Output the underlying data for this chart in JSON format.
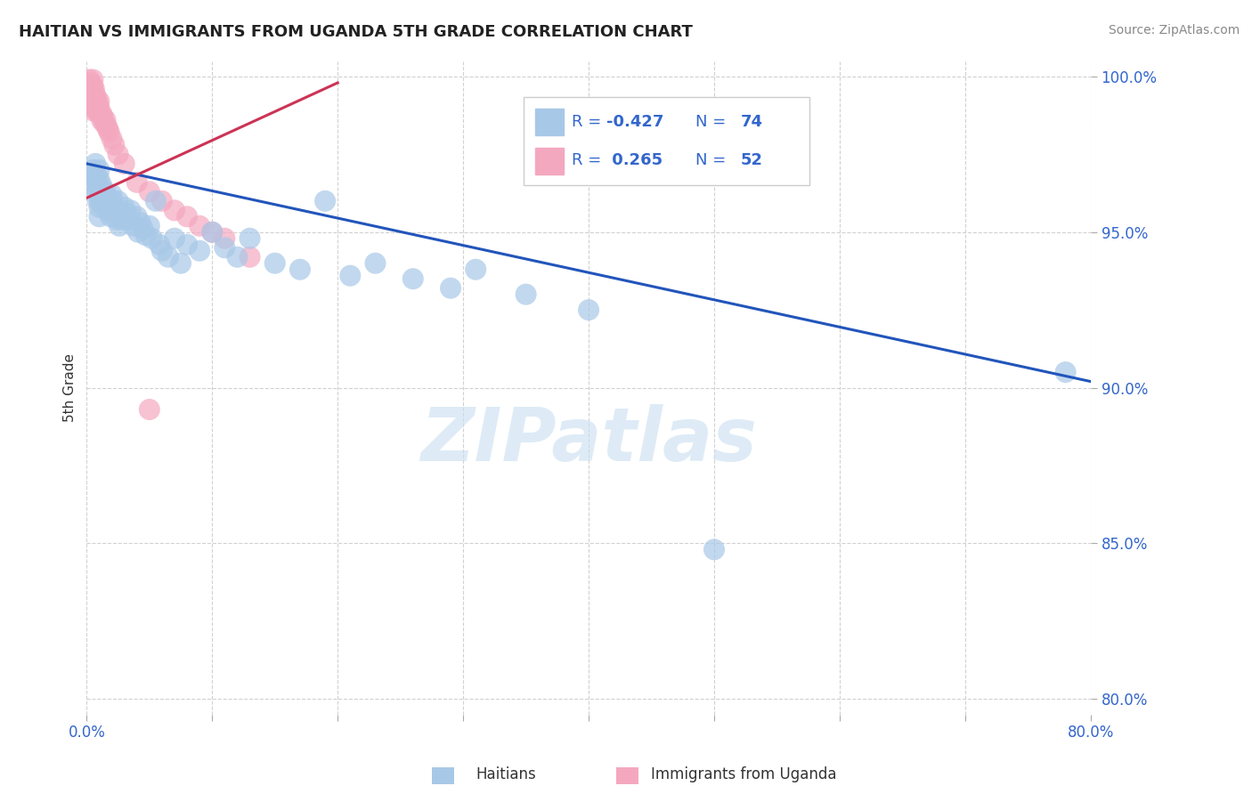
{
  "title": "HAITIAN VS IMMIGRANTS FROM UGANDA 5TH GRADE CORRELATION CHART",
  "source": "Source: ZipAtlas.com",
  "ylabel": "5th Grade",
  "xlim": [
    0.0,
    0.8
  ],
  "ylim": [
    0.795,
    1.005
  ],
  "xtick_positions": [
    0.0,
    0.1,
    0.2,
    0.3,
    0.4,
    0.5,
    0.6,
    0.7,
    0.8
  ],
  "xticklabels": [
    "0.0%",
    "",
    "",
    "",
    "",
    "",
    "",
    "",
    "80.0%"
  ],
  "ytick_positions": [
    0.8,
    0.85,
    0.9,
    0.95,
    1.0
  ],
  "yticklabels": [
    "80.0%",
    "85.0%",
    "90.0%",
    "95.0%",
    "100.0%"
  ],
  "blue_R": -0.427,
  "blue_N": 74,
  "pink_R": 0.265,
  "pink_N": 52,
  "blue_color": "#a8c8e8",
  "pink_color": "#f4a8c0",
  "blue_line_color": "#2255bb",
  "pink_line_color": "#cc3355",
  "text_color": "#3366cc",
  "blue_line_x": [
    0.0,
    0.8
  ],
  "blue_line_y": [
    0.972,
    0.902
  ],
  "pink_line_x": [
    0.0,
    0.2
  ],
  "pink_line_y": [
    0.961,
    0.998
  ],
  "blue_scatter_x": [
    0.005,
    0.005,
    0.005,
    0.007,
    0.007,
    0.008,
    0.008,
    0.009,
    0.009,
    0.01,
    0.01,
    0.01,
    0.01,
    0.01,
    0.01,
    0.012,
    0.012,
    0.012,
    0.013,
    0.013,
    0.014,
    0.015,
    0.015,
    0.016,
    0.016,
    0.017,
    0.018,
    0.019,
    0.02,
    0.02,
    0.021,
    0.022,
    0.023,
    0.024,
    0.025,
    0.026,
    0.028,
    0.03,
    0.03,
    0.032,
    0.034,
    0.035,
    0.037,
    0.04,
    0.041,
    0.043,
    0.045,
    0.047,
    0.05,
    0.052,
    0.055,
    0.058,
    0.06,
    0.065,
    0.07,
    0.075,
    0.08,
    0.09,
    0.1,
    0.11,
    0.12,
    0.13,
    0.15,
    0.17,
    0.19,
    0.21,
    0.23,
    0.26,
    0.29,
    0.31,
    0.35,
    0.4,
    0.5,
    0.78
  ],
  "blue_scatter_y": [
    0.968,
    0.97,
    0.965,
    0.967,
    0.972,
    0.963,
    0.968,
    0.965,
    0.96,
    0.97,
    0.967,
    0.964,
    0.961,
    0.958,
    0.955,
    0.965,
    0.962,
    0.959,
    0.963,
    0.96,
    0.961,
    0.959,
    0.963,
    0.957,
    0.961,
    0.959,
    0.957,
    0.955,
    0.962,
    0.958,
    0.96,
    0.958,
    0.956,
    0.954,
    0.96,
    0.952,
    0.954,
    0.958,
    0.955,
    0.956,
    0.954,
    0.957,
    0.952,
    0.955,
    0.95,
    0.953,
    0.951,
    0.949,
    0.952,
    0.948,
    0.96,
    0.946,
    0.944,
    0.942,
    0.948,
    0.94,
    0.946,
    0.944,
    0.95,
    0.945,
    0.942,
    0.948,
    0.94,
    0.938,
    0.96,
    0.936,
    0.94,
    0.935,
    0.932,
    0.938,
    0.93,
    0.925,
    0.848,
    0.905
  ],
  "pink_scatter_x": [
    0.002,
    0.002,
    0.002,
    0.003,
    0.003,
    0.003,
    0.003,
    0.004,
    0.004,
    0.004,
    0.004,
    0.005,
    0.005,
    0.005,
    0.005,
    0.005,
    0.005,
    0.006,
    0.006,
    0.006,
    0.007,
    0.007,
    0.008,
    0.008,
    0.008,
    0.009,
    0.009,
    0.01,
    0.01,
    0.01,
    0.012,
    0.012,
    0.013,
    0.014,
    0.015,
    0.016,
    0.017,
    0.018,
    0.02,
    0.022,
    0.025,
    0.03,
    0.04,
    0.05,
    0.06,
    0.07,
    0.08,
    0.09,
    0.1,
    0.11,
    0.13,
    0.05
  ],
  "pink_scatter_y": [
    0.999,
    0.997,
    0.995,
    0.998,
    0.996,
    0.994,
    0.992,
    0.997,
    0.995,
    0.993,
    0.991,
    0.999,
    0.997,
    0.995,
    0.993,
    0.991,
    0.989,
    0.996,
    0.994,
    0.992,
    0.994,
    0.992,
    0.993,
    0.991,
    0.989,
    0.991,
    0.989,
    0.992,
    0.99,
    0.988,
    0.988,
    0.986,
    0.987,
    0.985,
    0.986,
    0.984,
    0.983,
    0.982,
    0.98,
    0.978,
    0.975,
    0.972,
    0.966,
    0.963,
    0.96,
    0.957,
    0.955,
    0.952,
    0.95,
    0.948,
    0.942,
    0.893
  ]
}
